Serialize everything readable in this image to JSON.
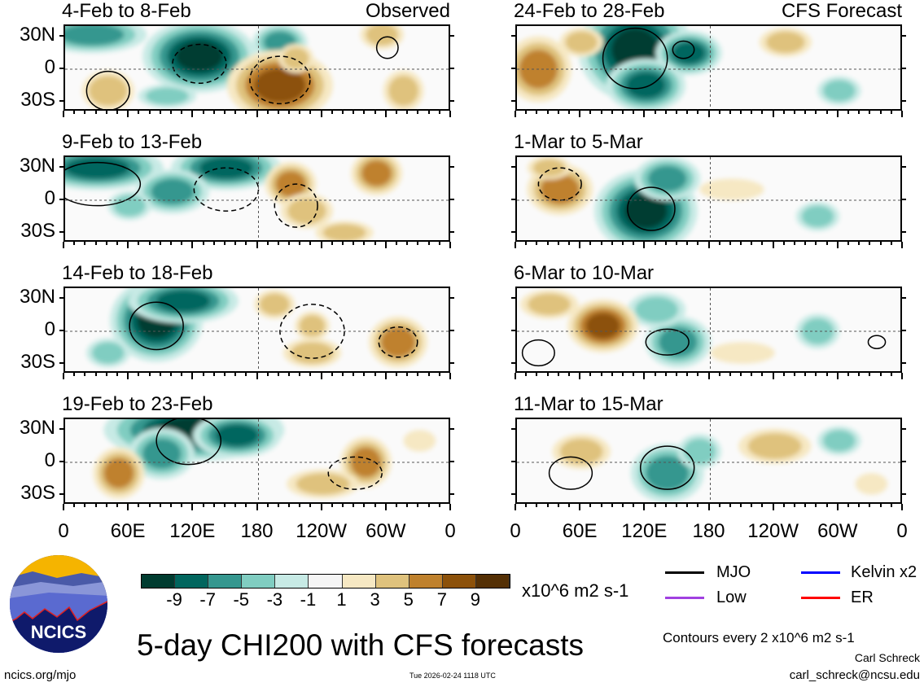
{
  "panels_left": [
    {
      "title": "4-Feb to 8-Feb",
      "label": "Observed"
    },
    {
      "title": "9-Feb to 13-Feb",
      "label": ""
    },
    {
      "title": "14-Feb to 18-Feb",
      "label": ""
    },
    {
      "title": "19-Feb to 23-Feb",
      "label": ""
    }
  ],
  "panels_right": [
    {
      "title": "24-Feb to 28-Feb",
      "label": "CFS Forecast"
    },
    {
      "title": "1-Mar to 5-Mar",
      "label": ""
    },
    {
      "title": "6-Mar to 10-Mar",
      "label": ""
    },
    {
      "title": "11-Mar to 15-Mar",
      "label": ""
    }
  ],
  "lat_labels": [
    "30N",
    "0",
    "30S"
  ],
  "lon_labels": [
    "0",
    "60E",
    "120E",
    "180",
    "120W",
    "60W",
    "0"
  ],
  "colorbar": {
    "colors": [
      "#003c30",
      "#01665e",
      "#35978f",
      "#80cdc1",
      "#c7eae5",
      "#f5f5f5",
      "#f6e8c3",
      "#dfc27d",
      "#bf812d",
      "#8c510a",
      "#543005"
    ],
    "labels": [
      "-9",
      "-7",
      "-5",
      "-3",
      "-1",
      "1",
      "3",
      "5",
      "7",
      "9"
    ],
    "units": "x10^6 m2 s-1"
  },
  "legend": [
    {
      "name": "MJO",
      "color": "#000000"
    },
    {
      "name": "Kelvin x2",
      "color": "#0000ff"
    },
    {
      "name": "Low",
      "color": "#a040e0"
    },
    {
      "name": "ER",
      "color": "#ff0000"
    }
  ],
  "title": "5-day CHI200 with CFS forecasts",
  "contours_note": "Contours every 2 x10^6 m2 s-1",
  "author": "Carl Schreck",
  "email": "carl_schreck@ncsu.edu",
  "url": "ncics.org/mjo",
  "timestamp": "Tue 2026-02-24 1118 UTC",
  "logo_text": "NCICS"
}
